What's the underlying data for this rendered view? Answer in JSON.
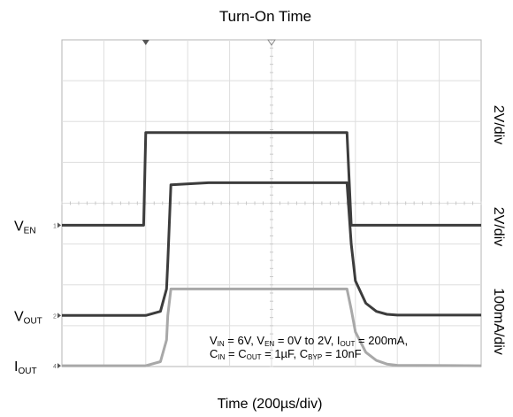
{
  "chart_data": {
    "type": "line",
    "title": "Turn-On Time",
    "xlabel": "Time (200µs/div)",
    "x_divisions": 10,
    "y_divisions": 8,
    "x_unit_per_div": "200µs",
    "grid": true,
    "channel_labels": [
      {
        "main": "V",
        "sub": "EN",
        "marker": "1"
      },
      {
        "main": "V",
        "sub": "OUT",
        "marker": "2"
      },
      {
        "main": "I",
        "sub": "OUT",
        "marker": "4"
      }
    ],
    "scale_labels": [
      "2V/div",
      "2V/div",
      "100mA/div"
    ],
    "x": [
      0,
      200,
      390,
      400,
      470,
      499,
      505,
      520,
      700,
      1340,
      1360,
      1380,
      1400,
      1450,
      1500,
      1550,
      1600,
      2000
    ],
    "series": [
      {
        "color": "#3c3c3c",
        "values": [
          3.46,
          3.46,
          3.46,
          5.73,
          5.73,
          5.73,
          5.73,
          5.73,
          5.73,
          5.73,
          5.73,
          3.46,
          3.46,
          3.46,
          3.46,
          3.46,
          3.46,
          3.46
        ]
      },
      {
        "color": "#3c3c3c",
        "values": [
          1.25,
          1.25,
          1.25,
          1.25,
          1.35,
          1.9,
          2.55,
          4.45,
          4.5,
          4.5,
          4.5,
          3.0,
          2.1,
          1.55,
          1.35,
          1.28,
          1.26,
          1.26
        ]
      },
      {
        "color": "#a8a8a8",
        "values": [
          0.02,
          0.02,
          0.02,
          0.02,
          0.12,
          0.65,
          1.25,
          1.9,
          1.9,
          1.9,
          1.9,
          1.4,
          0.85,
          0.35,
          0.15,
          0.06,
          0.03,
          0.02
        ]
      }
    ],
    "annotation": {
      "line1": [
        {
          "t": "V"
        },
        {
          "t": "IN",
          "sub": true
        },
        {
          "t": " = 6V, V"
        },
        {
          "t": "EN",
          "sub": true
        },
        {
          "t": " = 0V to 2V, I"
        },
        {
          "t": "OUT",
          "sub": true
        },
        {
          "t": " = 200mA,"
        }
      ],
      "line2": [
        {
          "t": "C"
        },
        {
          "t": "IN",
          "sub": true
        },
        {
          "t": " = C"
        },
        {
          "t": "OUT",
          "sub": true
        },
        {
          "t": " = 1µF, C"
        },
        {
          "t": "BYP",
          "sub": true
        },
        {
          "t": " = 10nF"
        }
      ]
    }
  }
}
